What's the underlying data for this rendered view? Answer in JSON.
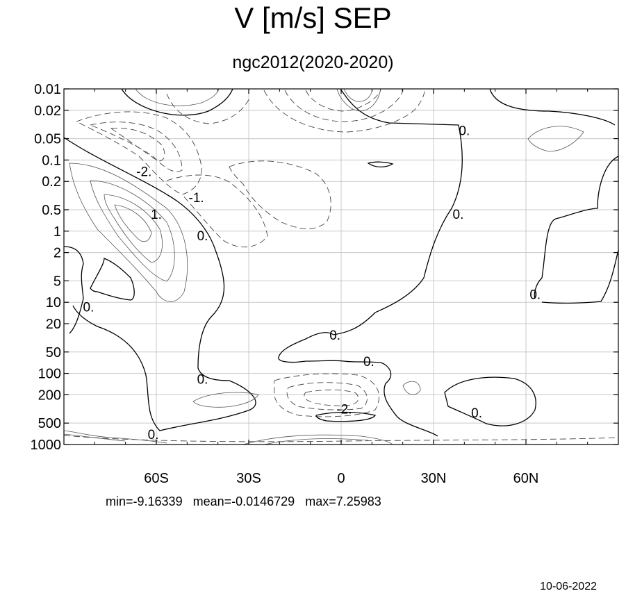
{
  "chart_data": {
    "type": "contour",
    "title": "V [m/s] SEP",
    "subtitle": "ngc2012(2020-2020)",
    "xlabel": "",
    "ylabel": "",
    "x_ticks": [
      {
        "value": -60,
        "label": "60S"
      },
      {
        "value": -30,
        "label": "30S"
      },
      {
        "value": 0,
        "label": "0"
      },
      {
        "value": 30,
        "label": "30N"
      },
      {
        "value": 60,
        "label": "60N"
      }
    ],
    "xlim": [
      -90,
      90
    ],
    "y_scale": "log",
    "y_direction": "reversed",
    "ylim": [
      1000,
      0.01
    ],
    "y_ticks": [
      {
        "value": 0.01,
        "label": "0.01"
      },
      {
        "value": 0.02,
        "label": "0.02"
      },
      {
        "value": 0.05,
        "label": "0.05"
      },
      {
        "value": 0.1,
        "label": "0.1"
      },
      {
        "value": 0.2,
        "label": "0.2"
      },
      {
        "value": 0.5,
        "label": "0.5"
      },
      {
        "value": 1,
        "label": "1"
      },
      {
        "value": 2,
        "label": "2"
      },
      {
        "value": 5,
        "label": "5"
      },
      {
        "value": 10,
        "label": "10"
      },
      {
        "value": 20,
        "label": "20"
      },
      {
        "value": 50,
        "label": "50"
      },
      {
        "value": 100,
        "label": "100"
      },
      {
        "value": 200,
        "label": "200"
      },
      {
        "value": 500,
        "label": "500"
      },
      {
        "value": 1000,
        "label": "1000"
      }
    ],
    "grid": true,
    "contour_labels": [
      {
        "text": "0.",
        "lat": 40,
        "p": 0.04
      },
      {
        "text": "-2.",
        "lat": -64,
        "p": 0.15
      },
      {
        "text": "-1.",
        "lat": -47,
        "p": 0.35
      },
      {
        "text": "1.",
        "lat": -60,
        "p": 0.6
      },
      {
        "text": "0.",
        "lat": -45,
        "p": 1.2
      },
      {
        "text": "0.",
        "lat": 38,
        "p": 0.6
      },
      {
        "text": "0.",
        "lat": -82,
        "p": 12
      },
      {
        "text": "0.",
        "lat": 63,
        "p": 8
      },
      {
        "text": "0.",
        "lat": -2,
        "p": 30
      },
      {
        "text": "0.",
        "lat": 9,
        "p": 70
      },
      {
        "text": "0.",
        "lat": -45,
        "p": 125
      },
      {
        "text": "-2.",
        "lat": 1,
        "p": 330
      },
      {
        "text": "0.",
        "lat": 44,
        "p": 370
      },
      {
        "text": "0.",
        "lat": -61,
        "p": 750
      }
    ],
    "stats": {
      "min": "-9.16339",
      "mean": "-0.0146729",
      "max": "7.25983"
    }
  },
  "footer": {
    "stats_text": "min=-9.16339   mean=-0.0146729   max=7.25983",
    "date": "10-06-2022"
  }
}
